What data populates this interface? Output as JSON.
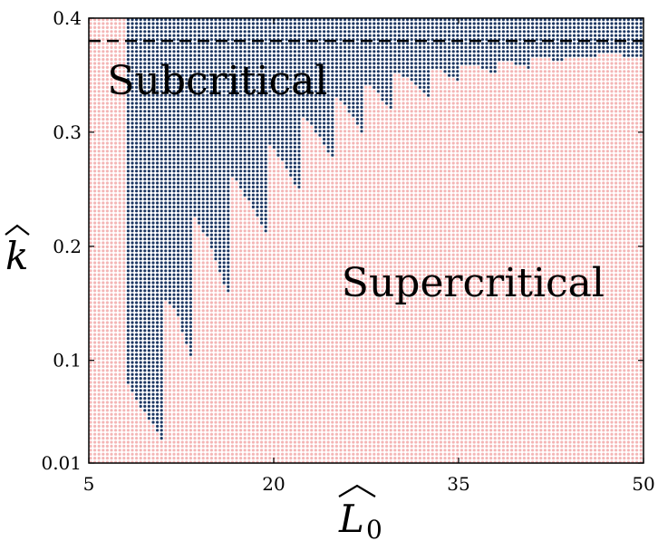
{
  "chart_data": {
    "type": "scatter",
    "title": "",
    "xlabel": "L0",
    "xlabel_base": "L",
    "xlabel_sub": "0",
    "ylabel": "k",
    "xlim": [
      5,
      50
    ],
    "ylim": [
      0.01,
      0.4
    ],
    "xticks": [
      5,
      20,
      35,
      50
    ],
    "xtick_labels": [
      "5",
      "20",
      "35",
      "50"
    ],
    "yticks": [
      0.01,
      0.1,
      0.2,
      0.3,
      0.4
    ],
    "ytick_labels": [
      "0.01",
      "0.1",
      "0.2",
      "0.3",
      "0.4"
    ],
    "grid": false,
    "dashed_line": {
      "y": 0.38
    },
    "series": [
      {
        "name": "Subcritical",
        "color": "#1f3864"
      },
      {
        "name": "Supercritical",
        "color": "#f4b6b6"
      }
    ],
    "annotations": [
      {
        "text": "Subcritical",
        "x": 6.5,
        "y": 0.345
      },
      {
        "text": "Supercritical",
        "x": 25.5,
        "y": 0.168
      }
    ],
    "boundary": [
      [
        5.0,
        0.4
      ],
      [
        8.0,
        0.4
      ],
      [
        8.0,
        0.083
      ],
      [
        9.0,
        0.063
      ],
      [
        11.0,
        0.03
      ],
      [
        11.0,
        0.155
      ],
      [
        12.1,
        0.143
      ],
      [
        13.6,
        0.09
      ],
      [
        13.6,
        0.225
      ],
      [
        14.6,
        0.208
      ],
      [
        16.4,
        0.155
      ],
      [
        16.4,
        0.265
      ],
      [
        17.4,
        0.25
      ],
      [
        19.4,
        0.21
      ],
      [
        19.4,
        0.293
      ],
      [
        20.2,
        0.282
      ],
      [
        22.2,
        0.247
      ],
      [
        22.2,
        0.315
      ],
      [
        23.0,
        0.307
      ],
      [
        24.9,
        0.275
      ],
      [
        24.9,
        0.332
      ],
      [
        25.6,
        0.327
      ],
      [
        27.3,
        0.298
      ],
      [
        27.3,
        0.343
      ],
      [
        28.1,
        0.338
      ],
      [
        29.8,
        0.315
      ],
      [
        29.8,
        0.352
      ],
      [
        30.7,
        0.348
      ],
      [
        32.6,
        0.33
      ],
      [
        32.6,
        0.357
      ],
      [
        33.4,
        0.355
      ],
      [
        35.2,
        0.342
      ],
      [
        35.2,
        0.36
      ],
      [
        36.2,
        0.359
      ],
      [
        38.0,
        0.35
      ],
      [
        38.0,
        0.362
      ],
      [
        39.0,
        0.362
      ],
      [
        40.8,
        0.355
      ],
      [
        40.8,
        0.365
      ],
      [
        42.0,
        0.365
      ],
      [
        43.6,
        0.36
      ],
      [
        43.6,
        0.367
      ],
      [
        45.0,
        0.367
      ],
      [
        46.4,
        0.363
      ],
      [
        46.4,
        0.368
      ],
      [
        48.0,
        0.368
      ],
      [
        50.0,
        0.364
      ]
    ]
  }
}
